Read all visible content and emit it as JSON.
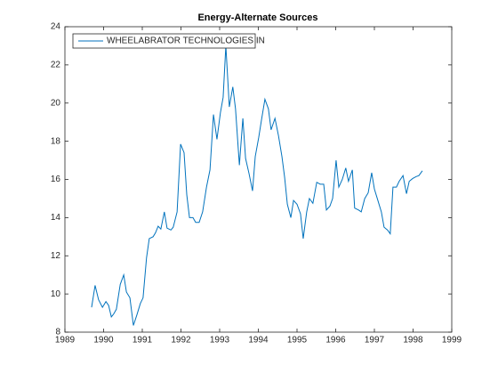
{
  "chart_data": {
    "type": "line",
    "title": "Energy-Alternate Sources",
    "x": [
      1989.69,
      1989.78,
      1989.87,
      1989.97,
      1990.06,
      1990.13,
      1990.2,
      1990.26,
      1990.33,
      1990.43,
      1990.52,
      1990.59,
      1990.68,
      1990.77,
      1990.86,
      1990.95,
      1991.02,
      1991.11,
      1991.18,
      1991.28,
      1991.34,
      1991.41,
      1991.48,
      1991.57,
      1991.64,
      1991.74,
      1991.8,
      1991.9,
      1991.99,
      1992.08,
      1992.15,
      1992.22,
      1992.31,
      1992.38,
      1992.47,
      1992.56,
      1992.66,
      1992.75,
      1992.84,
      1992.93,
      1993.02,
      1993.09,
      1993.16,
      1993.25,
      1993.34,
      1993.41,
      1993.51,
      1993.6,
      1993.67,
      1993.76,
      1993.85,
      1993.92,
      1994.01,
      1994.08,
      1994.17,
      1994.26,
      1994.33,
      1994.43,
      1994.52,
      1994.61,
      1994.68,
      1994.75,
      1994.84,
      1994.91,
      1995.0,
      1995.09,
      1995.16,
      1995.25,
      1995.32,
      1995.41,
      1995.51,
      1995.6,
      1995.69,
      1995.76,
      1995.85,
      1995.92,
      1996.01,
      1996.08,
      1996.17,
      1996.26,
      1996.33,
      1996.43,
      1996.49,
      1996.59,
      1996.66,
      1996.75,
      1996.84,
      1996.93,
      1997.0,
      1997.09,
      1997.18,
      1997.25,
      1997.34,
      1997.41,
      1997.48,
      1997.57,
      1997.64,
      1997.74,
      1997.83,
      1997.9,
      1997.99,
      1998.08,
      1998.15,
      1998.24
    ],
    "series": [
      {
        "name": "WHEELABRATOR TECHNOLOGIES IN",
        "color": "#0072bd",
        "values": [
          9.3,
          10.45,
          9.7,
          9.3,
          9.6,
          9.4,
          8.8,
          8.95,
          9.2,
          10.5,
          11.0,
          10.1,
          9.8,
          8.35,
          8.9,
          9.5,
          9.8,
          11.9,
          12.9,
          13.0,
          13.2,
          13.55,
          13.4,
          14.3,
          13.45,
          13.35,
          13.5,
          14.3,
          17.85,
          17.4,
          15.2,
          14.0,
          14.0,
          13.75,
          13.75,
          14.3,
          15.6,
          16.5,
          19.4,
          18.1,
          19.5,
          20.3,
          23.0,
          19.8,
          20.85,
          19.7,
          16.75,
          19.2,
          17.1,
          16.3,
          15.4,
          17.2,
          18.2,
          19.1,
          20.2,
          19.7,
          18.6,
          19.2,
          18.3,
          17.2,
          16.1,
          14.7,
          14.0,
          14.9,
          14.7,
          14.2,
          12.9,
          14.3,
          15.0,
          14.75,
          15.85,
          15.75,
          15.75,
          14.4,
          14.6,
          15.0,
          17.0,
          15.6,
          16.0,
          16.6,
          15.9,
          16.5,
          14.5,
          14.4,
          14.3,
          15.0,
          15.3,
          16.35,
          15.5,
          14.9,
          14.3,
          13.5,
          13.35,
          13.15,
          15.6,
          15.6,
          15.9,
          16.2,
          15.25,
          15.9,
          16.05,
          16.15,
          16.2,
          16.45
        ]
      }
    ],
    "xlim": [
      1989,
      1999
    ],
    "xticks": [
      1989,
      1990,
      1991,
      1992,
      1993,
      1994,
      1995,
      1996,
      1997,
      1998,
      1999
    ],
    "ylim": [
      8,
      24
    ],
    "yticks": [
      8,
      10,
      12,
      14,
      16,
      18,
      20,
      22,
      24
    ],
    "legend": "northwest",
    "grid": false
  }
}
